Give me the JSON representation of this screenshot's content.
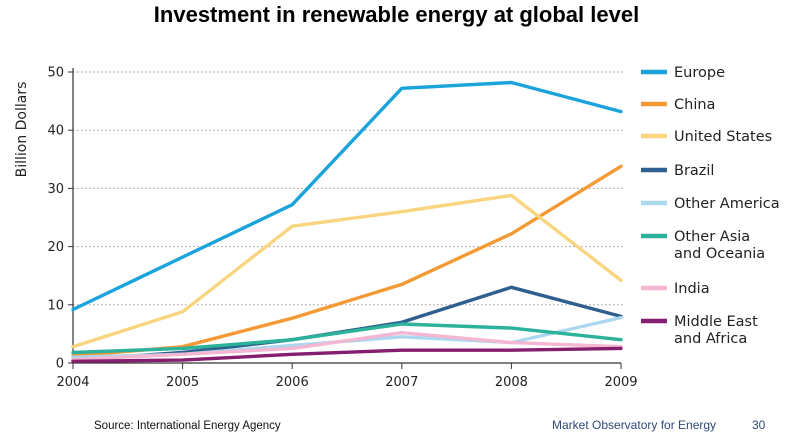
{
  "chart_data": {
    "type": "line",
    "title": "Investment in renewable energy at global level",
    "xlabel": "",
    "ylabel": "Billion Dollars",
    "x": [
      "2004",
      "2005",
      "2006",
      "2007",
      "2008",
      "2009"
    ],
    "ylim": [
      0,
      50
    ],
    "yticks": [
      "0",
      "10",
      "20",
      "30",
      "40",
      "50"
    ],
    "grid": true,
    "legend_position": "right",
    "series": [
      {
        "name": "Europe",
        "color": "#1ba3dc",
        "values": [
          9.2,
          18.2,
          27.2,
          47.2,
          48.2,
          43.2
        ]
      },
      {
        "name": "China",
        "color": "#f39a35",
        "values": [
          1.2,
          2.8,
          7.7,
          13.5,
          22.2,
          33.8
        ]
      },
      {
        "name": "United States",
        "color": "#f8d57e",
        "values": [
          2.8,
          8.8,
          23.5,
          26.0,
          28.8,
          14.2
        ]
      },
      {
        "name": "Brazil",
        "color": "#2e5f8e",
        "values": [
          0.5,
          1.8,
          4.0,
          7.0,
          13.0,
          8.0
        ]
      },
      {
        "name": "Other America",
        "color": "#abd8ee",
        "values": [
          1.0,
          1.5,
          3.0,
          4.5,
          3.5,
          7.8
        ]
      },
      {
        "name": "Other Asia\nand Oceania",
        "color": "#2cb19a",
        "values": [
          1.8,
          2.5,
          4.0,
          6.7,
          6.0,
          4.0
        ]
      },
      {
        "name": "India",
        "color": "#f5b6d2",
        "values": [
          0.6,
          1.5,
          2.5,
          5.2,
          3.5,
          2.8
        ]
      },
      {
        "name": "Middle East\nand Africa",
        "color": "#851e6e",
        "values": [
          0.3,
          0.5,
          1.5,
          2.2,
          2.2,
          2.5
        ]
      }
    ]
  },
  "footer": {
    "source": "Source: International Energy Agency",
    "org": "Market Observatory for Energy",
    "page": "30"
  }
}
